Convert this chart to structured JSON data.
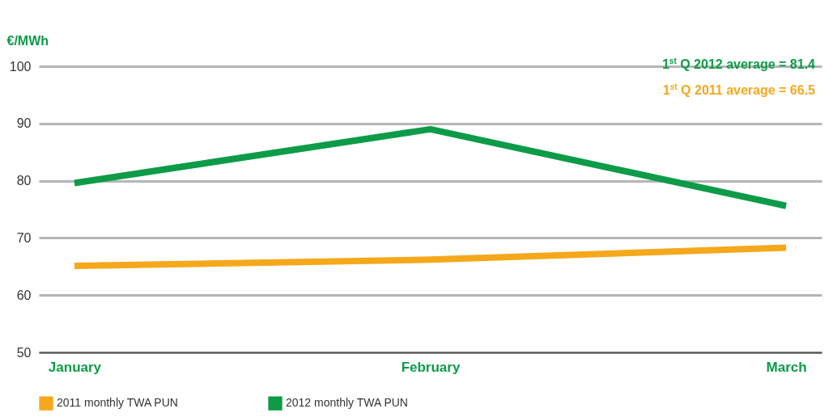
{
  "chart_data": {
    "type": "line",
    "ylabel": "€/MWh",
    "categories": [
      "January",
      "February",
      "March"
    ],
    "series": [
      {
        "name": "2011 monthly TWA PUN",
        "color": "#f5a81c",
        "values": [
          65.1,
          66.2,
          68.3
        ]
      },
      {
        "name": "2012 monthly TWA PUN",
        "color": "#0d9b48",
        "values": [
          79.6,
          89.0,
          75.6
        ]
      }
    ],
    "ylim": [
      50,
      100
    ],
    "yticks": [
      50,
      60,
      70,
      80,
      90,
      100
    ],
    "grid": "y",
    "legend": "bottom left",
    "marker": "none",
    "line_style": "solid",
    "annotations": [
      "1$^{st}$ Q 2012 average = 81.4",
      "1$^{st}$ Q 2011 average = 66.5"
    ]
  }
}
